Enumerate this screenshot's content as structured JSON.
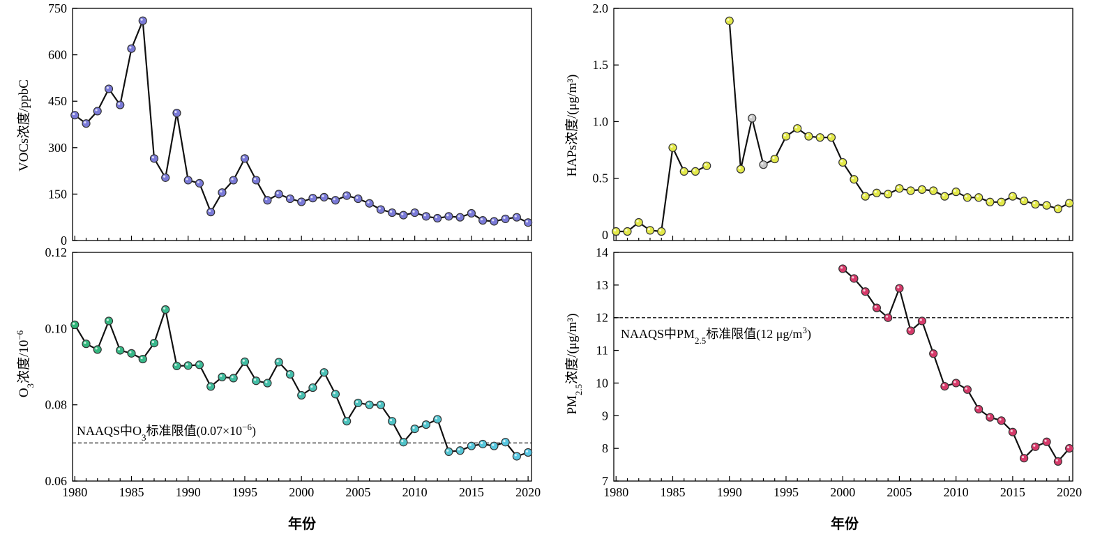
{
  "figure": {
    "x_axis_title": "年份",
    "x_ticks": [
      1980,
      1985,
      1990,
      1995,
      2000,
      2005,
      2010,
      2015,
      2020
    ]
  },
  "chart_data": [
    {
      "id": "voc",
      "type": "line",
      "ylabel": "VOCs浓度/ppbC",
      "xlim": [
        1979.8,
        2020.3
      ],
      "ylim": [
        0,
        750
      ],
      "yticks": [
        0,
        150,
        300,
        450,
        600,
        750
      ],
      "ytick_labels": [
        "0",
        "150",
        "300",
        "450",
        "600",
        "750"
      ],
      "show_x_tick_labels": false,
      "marker_colors": [
        "#7a7ad8"
      ],
      "points": [
        [
          1980,
          405
        ],
        [
          1981,
          378
        ],
        [
          1982,
          418
        ],
        [
          1983,
          490
        ],
        [
          1984,
          438
        ],
        [
          1985,
          620
        ],
        [
          1986,
          710
        ],
        [
          1987,
          265
        ],
        [
          1988,
          203
        ],
        [
          1989,
          412
        ],
        [
          1990,
          195
        ],
        [
          1991,
          185
        ],
        [
          1992,
          92
        ],
        [
          1993,
          155
        ],
        [
          1994,
          195
        ],
        [
          1995,
          265
        ],
        [
          1996,
          195
        ],
        [
          1997,
          130
        ],
        [
          1998,
          150
        ],
        [
          1999,
          135
        ],
        [
          2000,
          125
        ],
        [
          2001,
          137
        ],
        [
          2002,
          140
        ],
        [
          2003,
          130
        ],
        [
          2004,
          145
        ],
        [
          2005,
          135
        ],
        [
          2006,
          120
        ],
        [
          2007,
          100
        ],
        [
          2008,
          90
        ],
        [
          2009,
          82
        ],
        [
          2010,
          90
        ],
        [
          2011,
          78
        ],
        [
          2012,
          72
        ],
        [
          2013,
          78
        ],
        [
          2014,
          75
        ],
        [
          2015,
          88
        ],
        [
          2016,
          65
        ],
        [
          2017,
          62
        ],
        [
          2018,
          70
        ],
        [
          2019,
          75
        ],
        [
          2020,
          58
        ]
      ]
    },
    {
      "id": "hap",
      "type": "line",
      "ylabel": "HAPs浓度/(μg/m³)",
      "xlim": [
        1979.8,
        2020.3
      ],
      "ylim": [
        -0.05,
        2.0
      ],
      "yticks": [
        0,
        0.5,
        1.0,
        1.5,
        2.0
      ],
      "ytick_labels": [
        "0",
        "0.5",
        "1.0",
        "1.5",
        "2.0"
      ],
      "show_x_tick_labels": false,
      "marker_colors": [
        "#e3e94a"
      ],
      "segments": [
        [
          [
            1980,
            0.03
          ],
          [
            1981,
            0.03
          ],
          [
            1982,
            0.11
          ],
          [
            1983,
            0.04
          ],
          [
            1984,
            0.03
          ],
          [
            1985,
            0.77
          ],
          [
            1986,
            0.56
          ],
          [
            1987,
            0.56
          ],
          [
            1988,
            0.61
          ]
        ],
        [
          [
            1990,
            1.89
          ],
          [
            1991,
            0.58
          ],
          [
            1992,
            1.03
          ],
          [
            1993,
            0.62
          ],
          [
            1994,
            0.67
          ],
          [
            1995,
            0.87
          ],
          [
            1996,
            0.94
          ],
          [
            1997,
            0.87
          ],
          [
            1998,
            0.86
          ],
          [
            1999,
            0.86
          ],
          [
            2000,
            0.64
          ],
          [
            2001,
            0.49
          ],
          [
            2002,
            0.34
          ],
          [
            2003,
            0.37
          ],
          [
            2004,
            0.36
          ],
          [
            2005,
            0.41
          ],
          [
            2006,
            0.39
          ],
          [
            2007,
            0.4
          ],
          [
            2008,
            0.39
          ],
          [
            2009,
            0.34
          ],
          [
            2010,
            0.38
          ],
          [
            2011,
            0.33
          ],
          [
            2012,
            0.33
          ],
          [
            2013,
            0.29
          ],
          [
            2014,
            0.29
          ],
          [
            2015,
            0.34
          ],
          [
            2016,
            0.3
          ],
          [
            2017,
            0.27
          ],
          [
            2018,
            0.26
          ],
          [
            2019,
            0.23
          ],
          [
            2020,
            0.28
          ]
        ]
      ],
      "gray_marker_years": [
        1992,
        1993
      ]
    },
    {
      "id": "o3",
      "type": "line",
      "ylabel_main": "O",
      "ylabel_sub": "3",
      "ylabel_rest": "浓度/10",
      "ylabel_sup": "−6",
      "xlim": [
        1979.8,
        2020.3
      ],
      "ylim": [
        0.06,
        0.12
      ],
      "yticks": [
        0.06,
        0.08,
        0.1,
        0.12
      ],
      "ytick_labels": [
        "0.06",
        "0.08",
        "0.10",
        "0.12"
      ],
      "show_x_tick_labels": true,
      "marker_colors": [
        "#32b67a",
        "#5bc8e6"
      ],
      "points": [
        [
          1980,
          0.101
        ],
        [
          1981,
          0.096
        ],
        [
          1982,
          0.0945
        ],
        [
          1983,
          0.102
        ],
        [
          1984,
          0.0943
        ],
        [
          1985,
          0.0935
        ],
        [
          1986,
          0.092
        ],
        [
          1987,
          0.0962
        ],
        [
          1988,
          0.105
        ],
        [
          1989,
          0.0902
        ],
        [
          1990,
          0.0903
        ],
        [
          1991,
          0.0905
        ],
        [
          1992,
          0.0848
        ],
        [
          1993,
          0.0873
        ],
        [
          1994,
          0.087
        ],
        [
          1995,
          0.0913
        ],
        [
          1996,
          0.0863
        ],
        [
          1997,
          0.0857
        ],
        [
          1998,
          0.0912
        ],
        [
          1999,
          0.088
        ],
        [
          2000,
          0.0825
        ],
        [
          2001,
          0.0845
        ],
        [
          2002,
          0.0885
        ],
        [
          2003,
          0.0828
        ],
        [
          2004,
          0.0757
        ],
        [
          2005,
          0.0805
        ],
        [
          2006,
          0.08
        ],
        [
          2007,
          0.08
        ],
        [
          2008,
          0.0757
        ],
        [
          2009,
          0.0702
        ],
        [
          2010,
          0.0737
        ],
        [
          2011,
          0.0748
        ],
        [
          2012,
          0.0762
        ],
        [
          2013,
          0.0677
        ],
        [
          2014,
          0.068
        ],
        [
          2015,
          0.0692
        ],
        [
          2016,
          0.0697
        ],
        [
          2017,
          0.0692
        ],
        [
          2018,
          0.0702
        ],
        [
          2019,
          0.0665
        ],
        [
          2020,
          0.0675
        ]
      ],
      "reference": {
        "value": 0.07,
        "label_prefix": "NAAQS中O",
        "label_sub": "3",
        "label_mid": "标准限值(0.07×10",
        "label_sup": "−6",
        "label_suffix": ")"
      }
    },
    {
      "id": "pm25",
      "type": "line",
      "ylabel_main": "PM",
      "ylabel_sub": "2.5",
      "ylabel_rest": "浓度/(μg/m³)",
      "xlim": [
        1979.8,
        2020.3
      ],
      "ylim": [
        7,
        14
      ],
      "yticks": [
        7,
        8,
        9,
        10,
        11,
        12,
        13,
        14
      ],
      "ytick_labels": [
        "7",
        "8",
        "9",
        "10",
        "11",
        "12",
        "13",
        "14"
      ],
      "show_x_tick_labels": true,
      "marker_colors": [
        "#d63a6a"
      ],
      "points": [
        [
          2000,
          13.5
        ],
        [
          2001,
          13.2
        ],
        [
          2002,
          12.8
        ],
        [
          2003,
          12.3
        ],
        [
          2004,
          12.0
        ],
        [
          2005,
          12.9
        ],
        [
          2006,
          11.6
        ],
        [
          2007,
          11.9
        ],
        [
          2008,
          10.9
        ],
        [
          2009,
          9.9
        ],
        [
          2010,
          10.0
        ],
        [
          2011,
          9.8
        ],
        [
          2012,
          9.2
        ],
        [
          2013,
          8.95
        ],
        [
          2014,
          8.85
        ],
        [
          2015,
          8.5
        ],
        [
          2016,
          7.7
        ],
        [
          2017,
          8.05
        ],
        [
          2018,
          8.2
        ],
        [
          2019,
          7.6
        ],
        [
          2020,
          8.0
        ]
      ],
      "reference": {
        "value": 12,
        "label_prefix": "NAAQS中PM",
        "label_sub": "2.5",
        "label_mid": "标准限值(12 μg/m",
        "label_sup": "3",
        "label_suffix": ")"
      }
    }
  ]
}
